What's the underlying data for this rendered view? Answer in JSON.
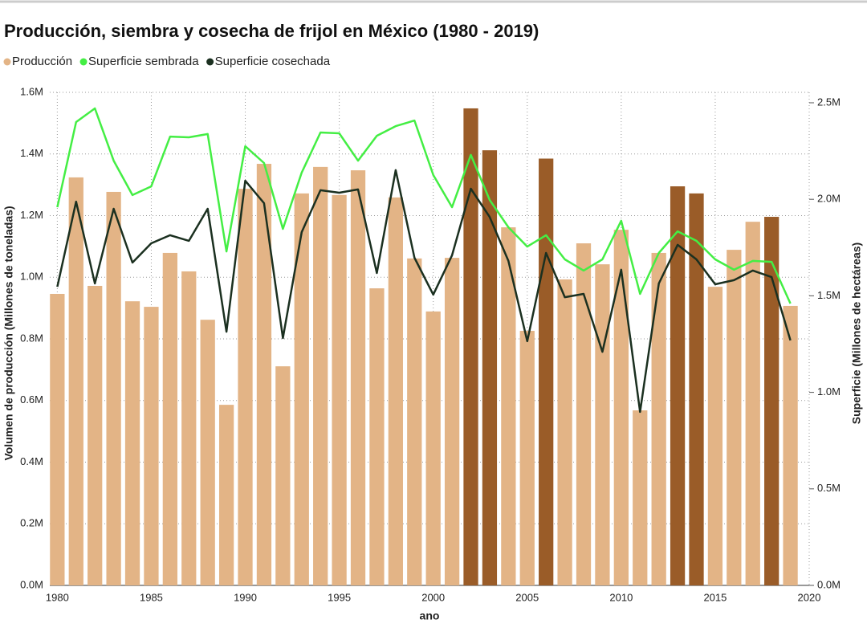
{
  "chart_data": {
    "type": "bar_line_dual",
    "title": "Producción, siembra y cosecha de frijol en México (1980 - 2019)",
    "x_label": "ano",
    "y_label": "Volumen de producción (Millones de toneladas)",
    "y2_label": "Superficie (Millones de hectáreas)",
    "x": [
      1980,
      1981,
      1982,
      1983,
      1984,
      1985,
      1986,
      1987,
      1988,
      1989,
      1990,
      1991,
      1992,
      1993,
      1994,
      1995,
      1996,
      1997,
      1998,
      1999,
      2000,
      2001,
      2002,
      2003,
      2004,
      2005,
      2006,
      2007,
      2008,
      2009,
      2010,
      2011,
      2012,
      2013,
      2014,
      2015,
      2016,
      2017,
      2018,
      2019
    ],
    "xlim": [
      1979.6,
      2020
    ],
    "xticks": [
      1980,
      1985,
      1990,
      1995,
      2000,
      2005,
      2010,
      2015,
      2020
    ],
    "ylim": [
      0,
      1600000
    ],
    "yticks": [
      {
        "value": 0,
        "label": "0.0M"
      },
      {
        "value": 200000,
        "label": "0.2M"
      },
      {
        "value": 400000,
        "label": "0.4M"
      },
      {
        "value": 600000,
        "label": "0.6M"
      },
      {
        "value": 800000,
        "label": "0.8M"
      },
      {
        "value": 1000000,
        "label": "1.0M"
      },
      {
        "value": 1200000,
        "label": "1.2M"
      },
      {
        "value": 1400000,
        "label": "1.4M"
      },
      {
        "value": 1600000,
        "label": "1.6M"
      }
    ],
    "y2lim": [
      0,
      2554000
    ],
    "y2ticks": [
      {
        "value": 0,
        "label": "0.0M"
      },
      {
        "value": 500000,
        "label": "0.5M"
      },
      {
        "value": 1000000,
        "label": "1.0M"
      },
      {
        "value": 1500000,
        "label": "1.5M"
      },
      {
        "value": 2000000,
        "label": "2.0M"
      },
      {
        "value": 2500000,
        "label": "2.5M"
      }
    ],
    "grid": true,
    "series": [
      {
        "name": "Producción",
        "type": "bar",
        "color": "#e3b486",
        "colors": [
          "#e3b486",
          "#e3b486",
          "#e3b486",
          "#e3b486",
          "#e3b486",
          "#e3b486",
          "#e3b486",
          "#e3b486",
          "#e3b486",
          "#e3b486",
          "#e3b486",
          "#e3b486",
          "#e3b486",
          "#e3b486",
          "#e3b486",
          "#e3b486",
          "#e3b486",
          "#e3b486",
          "#e3b486",
          "#e3b486",
          "#e3b486",
          "#e3b486",
          "#9a5c28",
          "#9a5c28",
          "#e3b486",
          "#e3b486",
          "#9a5c28",
          "#e3b486",
          "#e3b486",
          "#e3b486",
          "#e3b486",
          "#e3b486",
          "#e3b486",
          "#9a5c28",
          "#9a5c28",
          "#e3b486",
          "#e3b486",
          "#e3b486",
          "#9a5c28",
          "#e3b486"
        ],
        "values": [
          946000,
          1324000,
          972000,
          1277000,
          922000,
          904000,
          1079000,
          1019000,
          862000,
          586000,
          1287000,
          1368000,
          711000,
          1272000,
          1358000,
          1267000,
          1347000,
          964000,
          1259000,
          1061000,
          889000,
          1063000,
          1548000,
          1412000,
          1162000,
          826000,
          1385000,
          993000,
          1110000,
          1042000,
          1154000,
          568000,
          1079000,
          1295000,
          1272000,
          969000,
          1089000,
          1180000,
          1196000,
          907000
        ]
      },
      {
        "name": "Superficie sembrada",
        "type": "line",
        "axis": "y2",
        "color": "#44ee44",
        "values": [
          1959000,
          2400000,
          2471000,
          2200000,
          2022000,
          2067000,
          2325000,
          2321000,
          2338000,
          1730000,
          2275000,
          2188000,
          1847000,
          2138000,
          2346000,
          2342000,
          2200000,
          2329000,
          2379000,
          2408000,
          2126000,
          1959000,
          2230000,
          1997000,
          1855000,
          1755000,
          1814000,
          1689000,
          1631000,
          1689000,
          1889000,
          1510000,
          1722000,
          1834000,
          1785000,
          1689000,
          1635000,
          1681000,
          1676000,
          1460000
        ]
      },
      {
        "name": "Superficie cosechada",
        "type": "line",
        "axis": "y2",
        "color": "#1b3020",
        "values": [
          1547000,
          1988000,
          1564000,
          1951000,
          1672000,
          1772000,
          1814000,
          1785000,
          1951000,
          1314000,
          2096000,
          1980000,
          1281000,
          1830000,
          2047000,
          2034000,
          2051000,
          1618000,
          2151000,
          1697000,
          1506000,
          1710000,
          2055000,
          1909000,
          1681000,
          1265000,
          1722000,
          1493000,
          1510000,
          1210000,
          1635000,
          899000,
          1564000,
          1764000,
          1689000,
          1560000,
          1581000,
          1631000,
          1597000,
          1269000
        ]
      }
    ]
  }
}
